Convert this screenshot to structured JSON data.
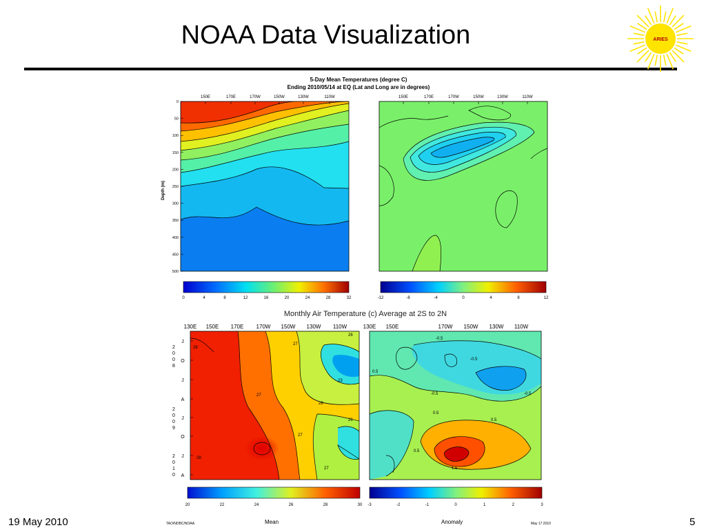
{
  "slide": {
    "title": "NOAA Data Visualization",
    "logo_text": "ARIES",
    "footer_date": "19 May 2010",
    "page_number": "5"
  },
  "colors": {
    "accent_rule": "#000000",
    "logo_sun": "#ffe400",
    "logo_text": "#b30000"
  },
  "icons": [
    "sun-logo-icon"
  ],
  "chart_data": [
    {
      "type": "heatmap",
      "title": "5-Day Mean Temperatures (degree C)",
      "subtitle": "Ending 2010/05/14 at EQ (Lat and Long are in degrees)",
      "x_tick_labels": [
        "150E",
        "170E",
        "170W",
        "150W",
        "130W",
        "110W"
      ],
      "ylabel": "Depth (m)",
      "y_ticks": [
        0,
        50,
        100,
        150,
        200,
        250,
        300,
        350,
        400,
        450,
        500
      ],
      "ylim": [
        500,
        0
      ],
      "colorbar": {
        "ticks": [
          0,
          4,
          8,
          12,
          16,
          20,
          24,
          28,
          32
        ],
        "range": [
          0,
          32
        ]
      }
    },
    {
      "type": "heatmap",
      "x_tick_labels": [
        "150E",
        "170E",
        "170W",
        "150W",
        "130W",
        "110W"
      ],
      "colorbar": {
        "ticks": [
          -12,
          -8,
          -4,
          0,
          4,
          8,
          12
        ],
        "range": [
          -12,
          12
        ]
      }
    },
    {
      "type": "heatmap",
      "title": "Monthly Air Temperature (c) Average at 2S to 2N",
      "x_tick_labels": [
        "130E",
        "150E",
        "170E",
        "170W",
        "150W",
        "130W",
        "110W"
      ],
      "y_tick_labels": [
        "J",
        "O",
        "J",
        "A",
        "J",
        "O",
        "J",
        "A"
      ],
      "y_year_labels": [
        "2008",
        "2009",
        "2010"
      ],
      "colorbar": {
        "ticks": [
          20,
          22,
          24,
          26,
          28,
          30
        ],
        "range": [
          20,
          30
        ],
        "label": "Mean"
      },
      "contour_labels": [
        "26",
        "27",
        "27",
        "28",
        "28",
        "27",
        "26",
        "27",
        "23",
        "28"
      ]
    },
    {
      "type": "heatmap",
      "x_tick_labels": [
        "130E",
        "150E",
        "170W",
        "150W",
        "130W",
        "110W"
      ],
      "colorbar": {
        "ticks": [
          -3,
          -2,
          -1,
          0,
          1,
          2,
          3
        ],
        "range": [
          -3,
          3
        ],
        "label": "Anomaly"
      },
      "contour_labels": [
        "-0.5",
        "-0.5",
        "-0.5",
        "0.5",
        "0.5",
        "1.5",
        "-0.5",
        "0.5",
        "0.5"
      ]
    }
  ],
  "footer_small": {
    "left": "TAO/NDBC/NOAA",
    "right": "May 17 2010"
  }
}
